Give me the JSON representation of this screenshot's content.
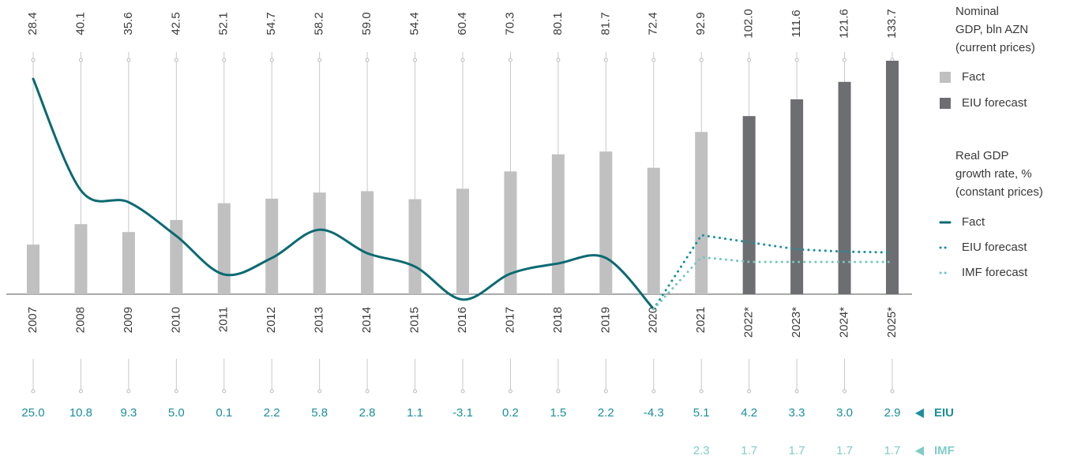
{
  "chart_data": {
    "type": "combo",
    "categories": [
      "2007",
      "2008",
      "2009",
      "2010",
      "2011",
      "2012",
      "2013",
      "2014",
      "2015",
      "2016",
      "2017",
      "2018",
      "2019",
      "2020",
      "2021",
      "2022*",
      "2023*",
      "2024*",
      "2025*"
    ],
    "bar_legend_title": [
      "Nominal",
      "GDP, bln AZN",
      "(current prices)"
    ],
    "line_legend_title": [
      "Real GDP",
      "growth rate, %",
      "(constant prices)"
    ],
    "row_labels": {
      "eiu": "EIU",
      "imf": "IMF"
    },
    "series": [
      {
        "name": "Fact",
        "type": "bar",
        "color": "#c0c0c0",
        "values": [
          28.4,
          40.1,
          35.6,
          42.5,
          52.1,
          54.7,
          58.2,
          59.0,
          54.4,
          60.4,
          70.3,
          80.1,
          81.7,
          72.4,
          92.9,
          null,
          null,
          null,
          null
        ],
        "value_labels": [
          "28.4",
          "40.1",
          "35.6",
          "42.5",
          "52.1",
          "54.7",
          "58.2",
          "59.0",
          "54.4",
          "60.4",
          "70.3",
          "80.1",
          "81.7",
          "72.4",
          "92.9",
          null,
          null,
          null,
          null
        ]
      },
      {
        "name": "EIU forecast",
        "type": "bar",
        "color": "#6d6e72",
        "values": [
          null,
          null,
          null,
          null,
          null,
          null,
          null,
          null,
          null,
          null,
          null,
          null,
          null,
          null,
          null,
          102.0,
          111.6,
          121.6,
          133.7
        ],
        "value_labels": [
          null,
          null,
          null,
          null,
          null,
          null,
          null,
          null,
          null,
          null,
          null,
          null,
          null,
          null,
          null,
          "102.0",
          "111.6",
          "121.6",
          "133.7"
        ]
      },
      {
        "name": "Fact",
        "type": "line",
        "style": "solid",
        "color": "#0b6a72",
        "label_color": "#1c8e9c",
        "values": [
          25.0,
          10.8,
          9.3,
          5.0,
          0.1,
          2.2,
          5.8,
          2.8,
          1.1,
          -3.1,
          0.2,
          1.5,
          2.2,
          -4.3,
          null,
          null,
          null,
          null,
          null
        ],
        "value_labels": [
          "25.0",
          "10.8",
          "9.3",
          "5.0",
          "0.1",
          "2.2",
          "5.8",
          "2.8",
          "1.1",
          "-3.1",
          "0.2",
          "1.5",
          "2.2",
          "-4.3",
          null,
          null,
          null,
          null,
          null
        ]
      },
      {
        "name": "EIU forecast",
        "type": "line",
        "style": "dotted",
        "color": "#1a8f9b",
        "label_color": "#1c8e9c",
        "row": "eiu",
        "values": [
          null,
          null,
          null,
          null,
          null,
          null,
          null,
          null,
          null,
          null,
          null,
          null,
          null,
          -4.3,
          5.1,
          4.2,
          3.3,
          3.0,
          2.9
        ],
        "value_labels": [
          null,
          null,
          null,
          null,
          null,
          null,
          null,
          null,
          null,
          null,
          null,
          null,
          null,
          null,
          "5.1",
          "4.2",
          "3.3",
          "3.0",
          "2.9"
        ]
      },
      {
        "name": "IMF forecast",
        "type": "line",
        "style": "dotted",
        "color": "#72c8bf",
        "label_color": "#7fcdc5",
        "row": "imf",
        "values": [
          null,
          null,
          null,
          null,
          null,
          null,
          null,
          null,
          null,
          null,
          null,
          null,
          null,
          -4.3,
          2.3,
          1.7,
          1.7,
          1.7,
          1.7
        ],
        "value_labels": [
          null,
          null,
          null,
          null,
          null,
          null,
          null,
          null,
          null,
          null,
          null,
          null,
          null,
          null,
          "2.3",
          "1.7",
          "1.7",
          "1.7",
          "1.7"
        ]
      }
    ]
  }
}
